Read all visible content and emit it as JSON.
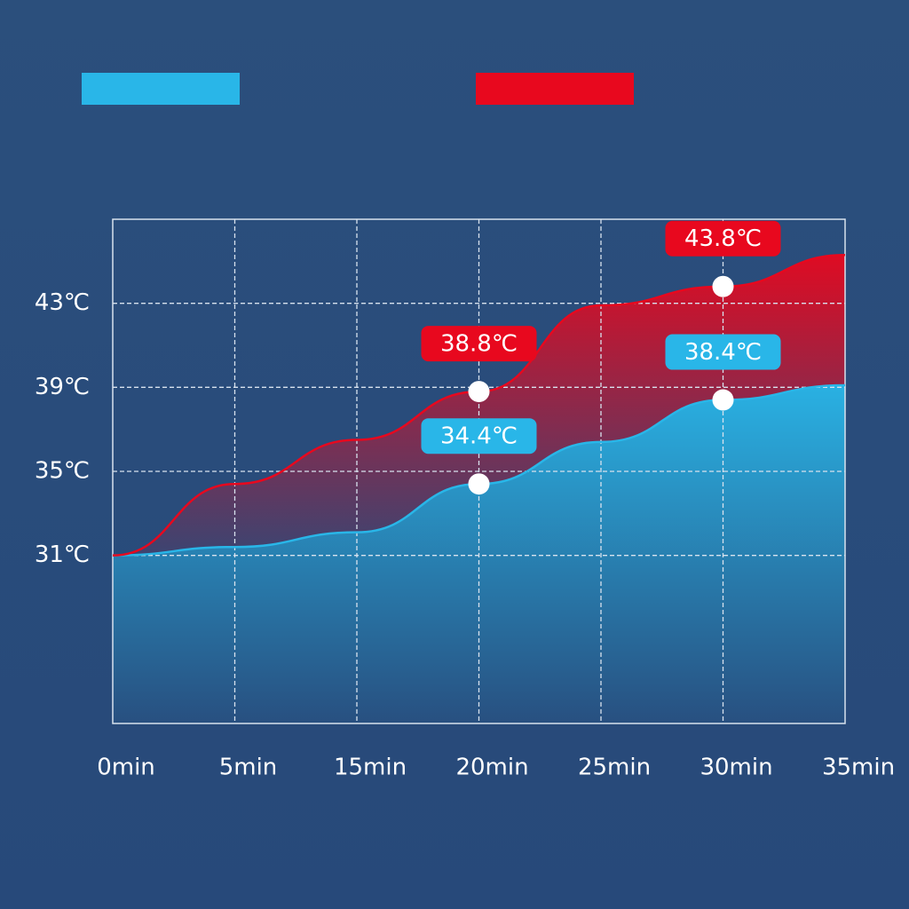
{
  "chart_data": {
    "type": "area",
    "categories": [
      "0min",
      "5min",
      "15min",
      "20min",
      "25min",
      "30min",
      "35min"
    ],
    "series": [
      {
        "color": "#29b6e8",
        "values": [
          31,
          31.4,
          32.1,
          34.4,
          36.4,
          38.4,
          39.1
        ],
        "value_labels": [
          null,
          null,
          null,
          "34.4℃",
          null,
          "38.4℃",
          null
        ]
      },
      {
        "color": "#e8081e",
        "values": [
          31,
          34.4,
          36.5,
          38.8,
          42.9,
          43.8,
          45.3
        ],
        "value_labels": [
          null,
          null,
          null,
          "38.8℃",
          null,
          "43.8℃",
          null
        ]
      }
    ],
    "ylim": [
      23,
      47
    ],
    "yticks": [
      {
        "value": 31,
        "label": "31℃"
      },
      {
        "value": 35,
        "label": "35℃"
      },
      {
        "value": 39,
        "label": "39℃"
      },
      {
        "value": 43,
        "label": "43℃"
      }
    ],
    "grid": true
  }
}
